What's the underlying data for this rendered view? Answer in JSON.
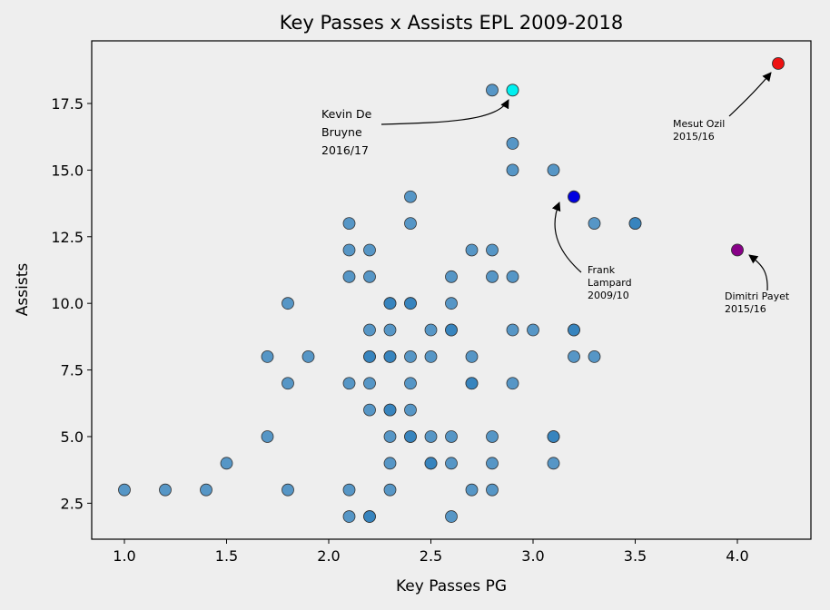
{
  "chart_data": {
    "type": "scatter",
    "title": "Key Passes x Assists EPL 2009-2018",
    "xlabel": "Key Passes PG",
    "ylabel": "Assists",
    "xlim": [
      0.84,
      4.36
    ],
    "ylim": [
      1.15,
      19.85
    ],
    "xticks": [
      "1.0",
      "1.5",
      "2.0",
      "2.5",
      "3.0",
      "3.5",
      "4.0"
    ],
    "yticks": [
      "2.5",
      "5.0",
      "7.5",
      "10.0",
      "12.5",
      "15.0",
      "17.5"
    ],
    "grid": false,
    "point_color": "#2f7fbc",
    "points": [
      [
        1.0,
        3
      ],
      [
        1.2,
        3
      ],
      [
        1.4,
        3
      ],
      [
        1.5,
        4
      ],
      [
        1.7,
        5
      ],
      [
        1.7,
        8
      ],
      [
        1.8,
        10
      ],
      [
        1.8,
        7
      ],
      [
        1.8,
        3
      ],
      [
        1.9,
        8
      ],
      [
        2.1,
        13
      ],
      [
        2.1,
        12
      ],
      [
        2.1,
        11
      ],
      [
        2.1,
        7
      ],
      [
        2.1,
        3
      ],
      [
        2.1,
        2
      ],
      [
        2.2,
        12
      ],
      [
        2.2,
        11
      ],
      [
        2.2,
        9
      ],
      [
        2.2,
        8
      ],
      [
        2.2,
        8
      ],
      [
        2.2,
        7
      ],
      [
        2.2,
        6
      ],
      [
        2.2,
        2
      ],
      [
        2.2,
        2
      ],
      [
        2.3,
        10
      ],
      [
        2.3,
        10
      ],
      [
        2.3,
        9
      ],
      [
        2.3,
        8
      ],
      [
        2.3,
        8
      ],
      [
        2.3,
        6
      ],
      [
        2.3,
        6
      ],
      [
        2.3,
        5
      ],
      [
        2.3,
        4
      ],
      [
        2.3,
        3
      ],
      [
        2.4,
        14
      ],
      [
        2.4,
        13
      ],
      [
        2.4,
        10
      ],
      [
        2.4,
        10
      ],
      [
        2.4,
        8
      ],
      [
        2.4,
        7
      ],
      [
        2.4,
        6
      ],
      [
        2.4,
        5
      ],
      [
        2.4,
        5
      ],
      [
        2.5,
        9
      ],
      [
        2.5,
        8
      ],
      [
        2.5,
        5
      ],
      [
        2.5,
        4
      ],
      [
        2.5,
        4
      ],
      [
        2.6,
        11
      ],
      [
        2.6,
        10
      ],
      [
        2.6,
        9
      ],
      [
        2.6,
        9
      ],
      [
        2.6,
        5
      ],
      [
        2.6,
        4
      ],
      [
        2.6,
        2
      ],
      [
        2.7,
        12
      ],
      [
        2.7,
        8
      ],
      [
        2.7,
        7
      ],
      [
        2.7,
        7
      ],
      [
        2.7,
        3
      ],
      [
        2.8,
        18
      ],
      [
        2.8,
        12
      ],
      [
        2.8,
        11
      ],
      [
        2.8,
        5
      ],
      [
        2.8,
        4
      ],
      [
        2.8,
        3
      ],
      [
        2.9,
        16
      ],
      [
        2.9,
        15
      ],
      [
        2.9,
        11
      ],
      [
        2.9,
        9
      ],
      [
        2.9,
        7
      ],
      [
        3.0,
        9
      ],
      [
        3.1,
        15
      ],
      [
        3.1,
        5
      ],
      [
        3.1,
        5
      ],
      [
        3.1,
        4
      ],
      [
        3.2,
        9
      ],
      [
        3.2,
        9
      ],
      [
        3.2,
        8
      ],
      [
        3.3,
        13
      ],
      [
        3.3,
        8
      ],
      [
        3.5,
        13
      ],
      [
        3.5,
        13
      ]
    ],
    "highlights": [
      {
        "x": 2.9,
        "y": 18,
        "color": "#00f0f0",
        "label": [
          "Kevin De",
          "Bruyne",
          "2016/17"
        ]
      },
      {
        "x": 3.2,
        "y": 14,
        "color": "#0000e0",
        "label": [
          "Frank",
          "Lampard",
          "2009/10"
        ]
      },
      {
        "x": 4.2,
        "y": 19,
        "color": "#ee1111",
        "label": [
          "Mesut Ozil",
          "2015/16"
        ]
      },
      {
        "x": 4.0,
        "y": 12,
        "color": "#880088",
        "label": [
          "Dimitri Payet",
          "2015/16"
        ]
      }
    ]
  }
}
